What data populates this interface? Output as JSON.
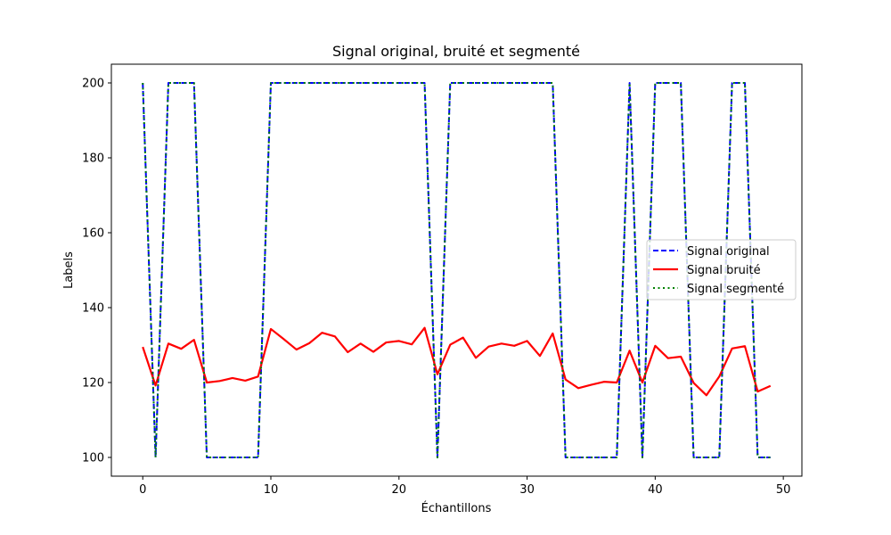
{
  "chart_data": {
    "type": "line",
    "title": "Signal original, bruité et segmenté",
    "xlabel": "Échantillons",
    "ylabel": "Labels",
    "xlim": [
      -2.45,
      51.45
    ],
    "ylim": [
      95,
      205
    ],
    "xticks": [
      0,
      10,
      20,
      30,
      40,
      50
    ],
    "yticks": [
      100,
      120,
      140,
      160,
      180,
      200
    ],
    "grid": false,
    "legend_position": "center-right",
    "x": [
      0,
      1,
      2,
      3,
      4,
      5,
      6,
      7,
      8,
      9,
      10,
      11,
      12,
      13,
      14,
      15,
      16,
      17,
      18,
      19,
      20,
      21,
      22,
      23,
      24,
      25,
      26,
      27,
      28,
      29,
      30,
      31,
      32,
      33,
      34,
      35,
      36,
      37,
      38,
      39,
      40,
      41,
      42,
      43,
      44,
      45,
      46,
      47,
      48,
      49
    ],
    "series": [
      {
        "name": "Signal original",
        "color": "#0000ff",
        "style": "dashed",
        "values": [
          200,
          100,
          200,
          200,
          200,
          100,
          100,
          100,
          100,
          100,
          200,
          200,
          200,
          200,
          200,
          200,
          200,
          200,
          200,
          200,
          200,
          200,
          200,
          100,
          200,
          200,
          200,
          200,
          200,
          200,
          200,
          200,
          200,
          100,
          100,
          100,
          100,
          100,
          200,
          100,
          200,
          200,
          200,
          100,
          100,
          100,
          200,
          200,
          100,
          100
        ]
      },
      {
        "name": "Signal bruité",
        "color": "#ff0000",
        "style": "solid",
        "values": [
          129.5,
          119.2,
          130.4,
          129.0,
          131.4,
          120.0,
          120.4,
          121.2,
          120.5,
          121.6,
          134.3,
          131.6,
          128.8,
          130.5,
          133.3,
          132.3,
          128.1,
          130.4,
          128.2,
          130.7,
          131.1,
          130.2,
          134.6,
          122.2,
          130.1,
          132.0,
          126.6,
          129.6,
          130.4,
          129.8,
          131.1,
          127.1,
          133.1,
          120.8,
          118.5,
          119.4,
          120.2,
          120.0,
          128.5,
          120.0,
          129.8,
          126.5,
          126.9,
          119.9,
          116.6,
          121.6,
          129.1,
          129.7,
          117.6,
          119.1
        ]
      },
      {
        "name": "Signal segmenté",
        "color": "#008000",
        "style": "dotted",
        "values": [
          200,
          100,
          200,
          200,
          200,
          100,
          100,
          100,
          100,
          100,
          200,
          200,
          200,
          200,
          200,
          200,
          200,
          200,
          200,
          200,
          200,
          200,
          200,
          100,
          200,
          200,
          200,
          200,
          200,
          200,
          200,
          200,
          200,
          100,
          100,
          100,
          100,
          100,
          200,
          100,
          200,
          200,
          200,
          100,
          100,
          100,
          200,
          200,
          100,
          100
        ]
      }
    ]
  }
}
